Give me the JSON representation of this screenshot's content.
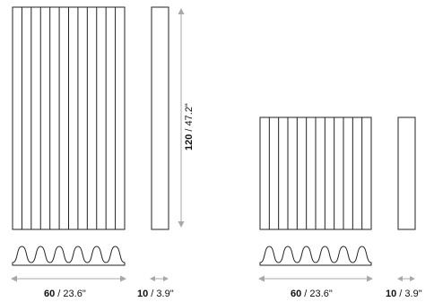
{
  "tall_panel": {
    "flutes": 12,
    "width_label": {
      "value": "60",
      "unit_text": " / 23.6\""
    },
    "depth_label": {
      "value": "10",
      "unit_text": " / 3.9\""
    },
    "height_label": {
      "value": "120",
      "unit_text": " / 47.2\""
    },
    "wave_count": 6
  },
  "short_panel": {
    "flutes": 12,
    "width_label": {
      "value": "60",
      "unit_text": " / 23.6\""
    },
    "depth_label": {
      "value": "10",
      "unit_text": " / 3.9\""
    },
    "wave_count": 6
  },
  "colors": {
    "line": "#222222",
    "arrow": "#a8a8a8",
    "text": "#111111"
  }
}
